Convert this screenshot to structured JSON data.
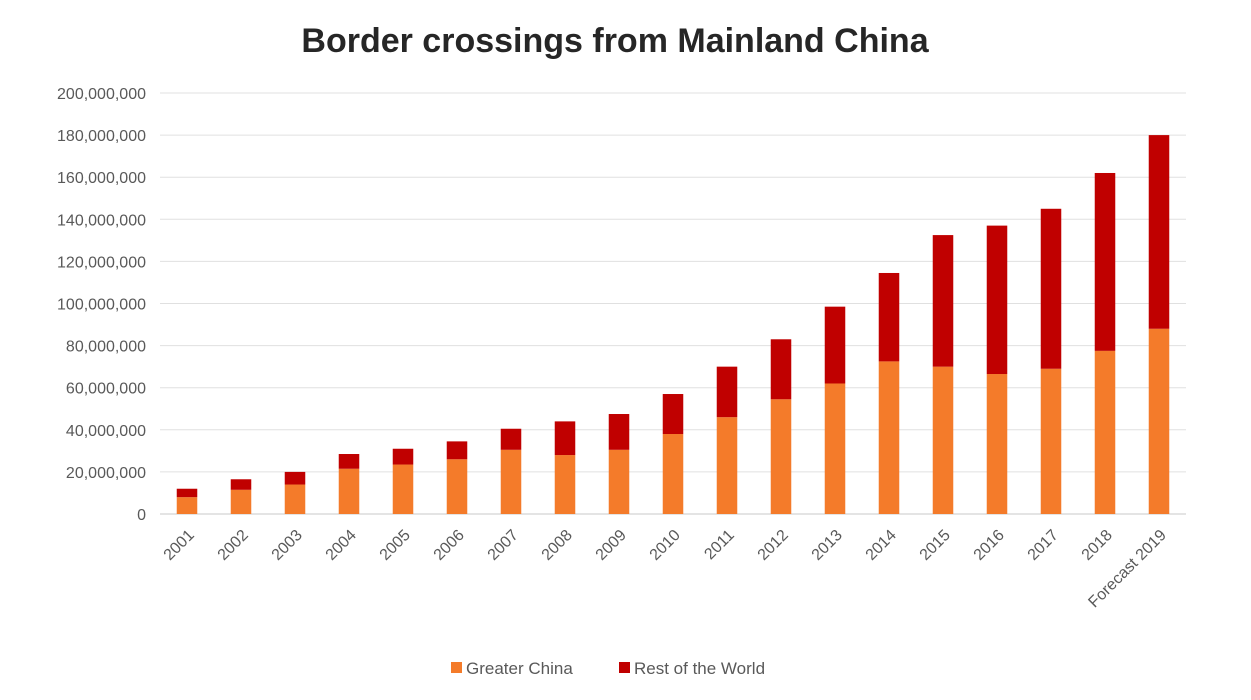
{
  "chart_data": {
    "type": "bar",
    "stacked": true,
    "title": "Border crossings from Mainland China",
    "xlabel": "",
    "ylabel": "",
    "ylim": [
      0,
      200000000
    ],
    "yticks": [
      0,
      20000000,
      40000000,
      60000000,
      80000000,
      100000000,
      120000000,
      140000000,
      160000000,
      180000000,
      200000000
    ],
    "ytick_labels": [
      "0",
      "20,000,000",
      "40,000,000",
      "60,000,000",
      "80,000,000",
      "100,000,000",
      "120,000,000",
      "140,000,000",
      "160,000,000",
      "180,000,000",
      "200,000,000"
    ],
    "grid": true,
    "legend_position": "bottom",
    "categories": [
      "2001",
      "2002",
      "2003",
      "2004",
      "2005",
      "2006",
      "2007",
      "2008",
      "2009",
      "2010",
      "2011",
      "2012",
      "2013",
      "2014",
      "2015",
      "2016",
      "2017",
      "2018",
      "Forecast 2019"
    ],
    "series": [
      {
        "name": "Greater China",
        "color": "#f47b2a",
        "values": [
          8000000,
          11500000,
          14000000,
          21500000,
          23500000,
          26000000,
          30500000,
          28000000,
          30500000,
          38000000,
          46000000,
          54500000,
          62000000,
          72500000,
          70000000,
          66500000,
          69000000,
          77500000,
          88000000
        ]
      },
      {
        "name": "Rest of the World",
        "color": "#c00000",
        "values": [
          4000000,
          5000000,
          6000000,
          7000000,
          7500000,
          8500000,
          10000000,
          16000000,
          17000000,
          19000000,
          24000000,
          28500000,
          36500000,
          42000000,
          62500000,
          70500000,
          76000000,
          84500000,
          92000000
        ]
      }
    ]
  }
}
